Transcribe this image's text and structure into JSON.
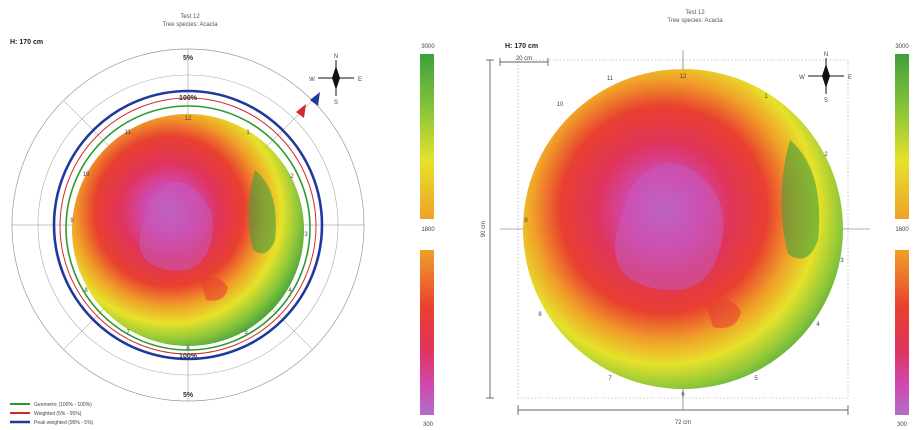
{
  "left_panel": {
    "title_line1": "Test 12",
    "title_line2": "Tree species: Acacia",
    "height_label": "H: 170 cm",
    "pct_top": "5%",
    "pct_bottom": "5%",
    "pct_inner_top": "100%",
    "pct_inner_bottom": "100%",
    "compass": {
      "n": "N",
      "s": "S",
      "e": "E",
      "w": "W"
    },
    "legend": [
      {
        "label": "Geometric (100% - 100%)",
        "color": "#2e9a2e"
      },
      {
        "label": "Weighted (5% - 95%)",
        "color": "#d22a2a"
      },
      {
        "label": "Peak weighted (95% - 5%)",
        "color": "#1f3a9c"
      }
    ],
    "clock_labels": [
      "12",
      "1",
      "2",
      "3",
      "4",
      "5",
      "6",
      "7",
      "8",
      "9",
      "10",
      "11"
    ],
    "scale_top": "3000",
    "scale_mid": "1800",
    "scale_bottom": "300"
  },
  "right_panel": {
    "title_line1": "Test 12",
    "title_line2": "Tree species: Acacia",
    "height_label": "H: 170 cm",
    "width_label": "20 cm",
    "span_label": "72 cm",
    "side_label": "90 cm",
    "compass": {
      "n": "N",
      "s": "S",
      "e": "E",
      "w": "W"
    },
    "clock_labels": [
      "12",
      "1",
      "2",
      "3",
      "4",
      "5",
      "6",
      "7",
      "8",
      "9",
      "10",
      "11"
    ],
    "scale_top": "3000",
    "scale_mid": "1800",
    "scale_bottom": "300"
  },
  "colors": {
    "outer_green": "#4aa83a",
    "yellow": "#e8e22a",
    "orange": "#f0a428",
    "red": "#e03232",
    "magenta": "#d040a8",
    "violet": "#b470c8",
    "ring_blue": "#1f3a9c",
    "ring_red": "#d22a2a",
    "ring_green": "#2e9a2e"
  }
}
